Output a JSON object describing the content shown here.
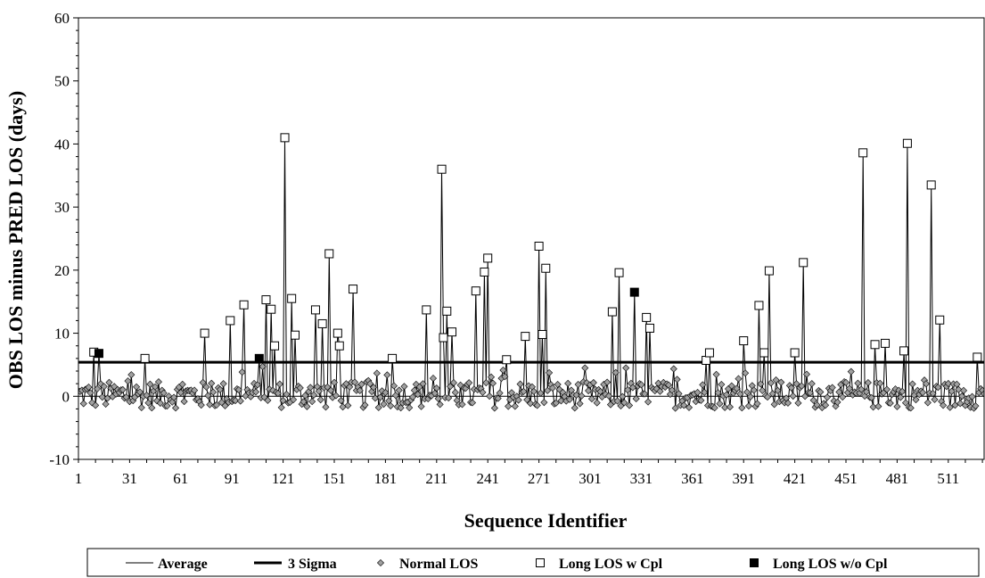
{
  "chart_data": {
    "type": "line",
    "xlabel": "Sequence Identifier",
    "ylabel": "OBS LOS  minus PRED LOS (days)",
    "xlim": [
      1,
      532
    ],
    "ylim": [
      -10,
      60
    ],
    "x_ticks": [
      1,
      31,
      61,
      91,
      121,
      151,
      181,
      211,
      241,
      271,
      301,
      331,
      361,
      391,
      421,
      451,
      481,
      511
    ],
    "y_ticks": [
      -10,
      0,
      10,
      20,
      30,
      40,
      50,
      60
    ],
    "grid": false,
    "legend_position": "bottom",
    "average": 0,
    "three_sigma": 5.4,
    "legend": [
      {
        "key": "average",
        "label": "Average",
        "symbol": "thin-line"
      },
      {
        "key": "sigma",
        "label": "3 Sigma",
        "symbol": "thick-line"
      },
      {
        "key": "normal",
        "label": "Normal LOS",
        "symbol": "gray-diamond"
      },
      {
        "key": "long_cpl",
        "label": "Long LOS w Cpl",
        "symbol": "white-square"
      },
      {
        "key": "long_nocpl",
        "label": "Long LOS w/o Cpl",
        "symbol": "black-square"
      }
    ],
    "long_los_with_cpl": [
      [
        10,
        7
      ],
      [
        40,
        6
      ],
      [
        75,
        10
      ],
      [
        90,
        12
      ],
      [
        98,
        14.5
      ],
      [
        111,
        15.3
      ],
      [
        114,
        13.8
      ],
      [
        116,
        8
      ],
      [
        122,
        41
      ],
      [
        126,
        15.5
      ],
      [
        128,
        9.7
      ],
      [
        140,
        13.7
      ],
      [
        144,
        11.5
      ],
      [
        148,
        22.6
      ],
      [
        153,
        10
      ],
      [
        154,
        8
      ],
      [
        162,
        17
      ],
      [
        185,
        6
      ],
      [
        205,
        13.7
      ],
      [
        214,
        36
      ],
      [
        215,
        9.3
      ],
      [
        217,
        13.5
      ],
      [
        220,
        10.2
      ],
      [
        234,
        16.7
      ],
      [
        239,
        19.7
      ],
      [
        241,
        21.9
      ],
      [
        252,
        5.8
      ],
      [
        263,
        9.5
      ],
      [
        271,
        23.8
      ],
      [
        273,
        9.8
      ],
      [
        275,
        20.3
      ],
      [
        314,
        13.4
      ],
      [
        318,
        19.6
      ],
      [
        334,
        12.5
      ],
      [
        336,
        10.8
      ],
      [
        369,
        5.7
      ],
      [
        371,
        6.9
      ],
      [
        391,
        8.8
      ],
      [
        400,
        14.4
      ],
      [
        403,
        6.9
      ],
      [
        406,
        19.9
      ],
      [
        421,
        6.9
      ],
      [
        426,
        21.2
      ],
      [
        461,
        38.6
      ],
      [
        468,
        8.2
      ],
      [
        474,
        8.4
      ],
      [
        485,
        7.2
      ],
      [
        487,
        40.1
      ],
      [
        501,
        33.5
      ],
      [
        506,
        12.1
      ],
      [
        528,
        6.2
      ]
    ],
    "long_los_without_cpl": [
      [
        13,
        6.8
      ],
      [
        107,
        6
      ],
      [
        327,
        16.5
      ]
    ],
    "normal_los_note": "Remaining sequence points are normal LOS values scattered between about -3 and 5 days"
  }
}
